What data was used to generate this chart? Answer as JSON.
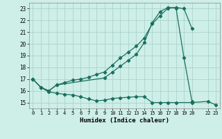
{
  "xlabel": "Humidex (Indice chaleur)",
  "bg_color": "#ceeee8",
  "grid_color": "#aad4cc",
  "line_color": "#1a7060",
  "xlim": [
    -0.5,
    23.5
  ],
  "ylim": [
    14.5,
    23.5
  ],
  "xticks": [
    0,
    1,
    2,
    3,
    4,
    5,
    6,
    7,
    8,
    9,
    10,
    11,
    12,
    13,
    14,
    15,
    16,
    17,
    18,
    19,
    20,
    22,
    23
  ],
  "yticks": [
    15,
    16,
    17,
    18,
    19,
    20,
    21,
    22,
    23
  ],
  "line1_x": [
    0,
    1,
    2,
    3,
    4,
    5,
    6,
    7,
    8,
    9,
    10,
    11,
    12,
    13,
    14,
    15,
    16,
    17,
    18,
    20,
    22,
    23
  ],
  "line1_y": [
    17.0,
    16.3,
    15.9,
    15.8,
    15.7,
    15.65,
    15.5,
    15.3,
    15.15,
    15.2,
    15.35,
    15.4,
    15.45,
    15.5,
    15.5,
    15.0,
    15.0,
    15.0,
    15.0,
    15.0,
    15.1,
    14.8
  ],
  "line2_x": [
    0,
    1,
    2,
    3,
    4,
    5,
    6,
    7,
    8,
    9,
    10,
    11,
    12,
    13,
    14,
    15,
    16,
    17,
    18,
    19,
    20
  ],
  "line2_y": [
    17.0,
    16.3,
    16.0,
    16.5,
    16.7,
    16.9,
    17.0,
    17.15,
    17.4,
    17.6,
    18.2,
    18.8,
    19.3,
    19.8,
    20.5,
    21.7,
    22.4,
    23.05,
    23.1,
    23.0,
    21.3
  ],
  "line3_x": [
    0,
    1,
    2,
    3,
    9,
    10,
    11,
    12,
    13,
    14,
    15,
    16,
    17,
    18,
    19,
    20
  ],
  "line3_y": [
    17.0,
    16.3,
    16.0,
    16.5,
    17.1,
    17.6,
    18.1,
    18.6,
    19.1,
    20.1,
    21.8,
    22.75,
    23.1,
    23.05,
    18.8,
    15.1
  ]
}
